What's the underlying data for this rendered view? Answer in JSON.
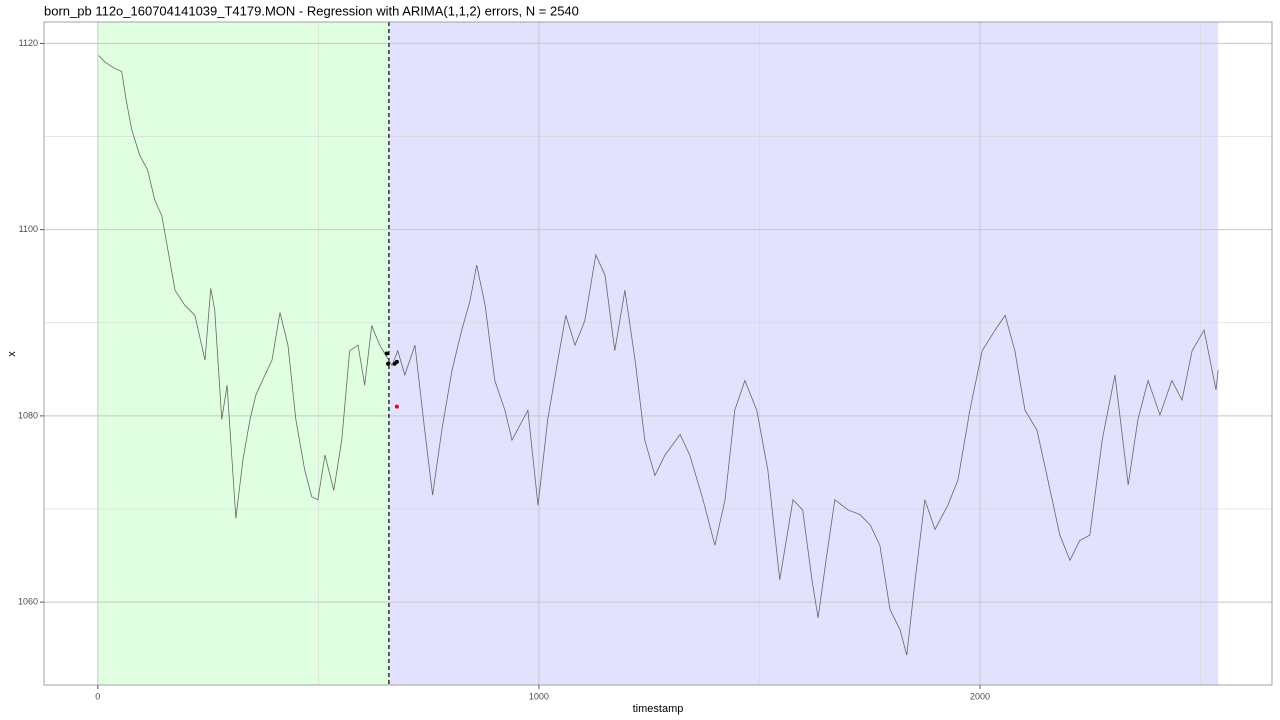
{
  "chart_data": {
    "type": "line",
    "title": "born_pb 112o_160704141039_T4179.MON - Regression with ARIMA(1,1,2) errors, N = 2540",
    "x_label": "timestamp",
    "y_label": "x",
    "xlim": [
      -122,
      2662
    ],
    "ylim": [
      1051.1,
      1122.3
    ],
    "xticks": [
      0,
      1000,
      2000
    ],
    "yticks": [
      1060,
      1080,
      1100,
      1120
    ],
    "x_minor_ticks": [
      500,
      1500,
      2500
    ],
    "y_minor_ticks": [
      1070,
      1090,
      1110
    ],
    "grid": true,
    "regions": [
      {
        "from": 0,
        "to": 660,
        "color": "#e0ffe0"
      },
      {
        "from": 660,
        "to": 2540,
        "color": "#e2e2ff"
      }
    ],
    "vline": 660,
    "x": [
      2,
      16,
      39,
      54,
      64,
      77,
      95,
      113,
      129,
      145,
      159,
      175,
      197,
      220,
      243,
      256,
      265,
      281,
      293,
      313,
      329,
      345,
      358,
      379,
      395,
      413,
      431,
      449,
      469,
      485,
      499,
      515,
      535,
      553,
      571,
      590,
      605,
      621,
      639,
      653,
      667,
      680,
      696,
      719,
      741,
      759,
      780,
      803,
      825,
      844,
      859,
      878,
      900,
      923,
      939,
      957,
      975,
      998,
      1020,
      1043,
      1061,
      1082,
      1104,
      1129,
      1150,
      1172,
      1195,
      1218,
      1240,
      1263,
      1286,
      1320,
      1342,
      1372,
      1399,
      1422,
      1444,
      1467,
      1494,
      1519,
      1546,
      1576,
      1598,
      1619,
      1633,
      1651,
      1671,
      1701,
      1728,
      1751,
      1773,
      1796,
      1819,
      1834,
      1853,
      1875,
      1898,
      1927,
      1950,
      1977,
      2005,
      2034,
      2057,
      2079,
      2102,
      2129,
      2154,
      2181,
      2204,
      2226,
      2249,
      2277,
      2306,
      2336,
      2358,
      2381,
      2408,
      2435,
      2458,
      2481,
      2508,
      2535,
      2540
    ],
    "series": [
      {
        "color": "#666666",
        "values": [
          1118.7,
          1118,
          1117.3,
          1117,
          1114,
          1110.7,
          1108,
          1106.4,
          1103.2,
          1101.5,
          1097.8,
          1093.5,
          1091.9,
          1090.8,
          1086,
          1093.7,
          1091.4,
          1079.6,
          1083.3,
          1069,
          1075.3,
          1079.6,
          1082.2,
          1084.4,
          1086,
          1091.1,
          1087.6,
          1079.6,
          1074.2,
          1071.3,
          1071,
          1075.8,
          1072,
          1077.4,
          1087,
          1087.6,
          1083.3,
          1089.7,
          1087.6,
          1086.5,
          1085.4,
          1087,
          1084.4,
          1087.6,
          1078.5,
          1071.5,
          1078.5,
          1084.9,
          1089.2,
          1092.4,
          1096.2,
          1091.9,
          1083.8,
          1080.6,
          1077.4,
          1079,
          1080.6,
          1070.4,
          1079.6,
          1086,
          1090.8,
          1087.6,
          1090.2,
          1097.3,
          1095.1,
          1087,
          1093.5,
          1086,
          1077.4,
          1073.6,
          1075.8,
          1078,
          1075.8,
          1071,
          1066.1,
          1071,
          1080.6,
          1083.8,
          1080.6,
          1074.2,
          1062.4,
          1071,
          1069.9,
          1062.4,
          1058.3,
          1064.5,
          1071,
          1069.9,
          1069.4,
          1068.3,
          1066.1,
          1059.2,
          1057,
          1054.3,
          1062.4,
          1071,
          1067.8,
          1070.4,
          1073.1,
          1080.6,
          1087,
          1089.2,
          1090.8,
          1087,
          1080.6,
          1078.5,
          1073.1,
          1067.2,
          1064.5,
          1066.6,
          1067.2,
          1077.4,
          1084.4,
          1072.6,
          1079.6,
          1083.8,
          1080.1,
          1083.8,
          1081.7,
          1087,
          1089.2,
          1082.8,
          1084.9
        ]
      }
    ],
    "points": [
      {
        "x": 655,
        "y": 1086.7,
        "color": "#000000"
      },
      {
        "x": 658,
        "y": 1085.6,
        "color": "#000000"
      },
      {
        "x": 673,
        "y": 1085.6,
        "color": "#000000"
      },
      {
        "x": 678,
        "y": 1085.8,
        "color": "#000000"
      },
      {
        "x": 678,
        "y": 1081,
        "color": "#ff0000"
      }
    ]
  }
}
